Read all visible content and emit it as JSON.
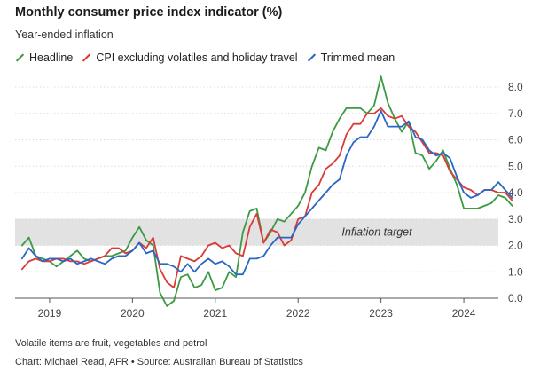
{
  "title": "Monthly consumer price index indicator (%)",
  "subtitle": "Year-ended inflation",
  "footnote": "Volatile items are fruit, vegetables and petrol",
  "source": "Chart: Michael Read, AFR • Source: Australian Bureau of Statistics",
  "colors": {
    "headline": "#3c9a43",
    "cpi_ex": "#d93b36",
    "trimmed": "#2a66c4",
    "band": "#e2e2e2",
    "grid": "#dcdcdc",
    "axis": "#555555"
  },
  "chart_data": {
    "type": "line",
    "x_range": [
      "2018-08",
      "2024-06"
    ],
    "ylim": [
      0,
      8.5
    ],
    "yticks": [
      "0.0",
      "1.0",
      "2.0",
      "3.0",
      "4.0",
      "5.0",
      "6.0",
      "7.0",
      "8.0"
    ],
    "xticks": [
      "2019",
      "2020",
      "2021",
      "2022",
      "2023",
      "2024"
    ],
    "grid": "horizontal",
    "legend": "top-left",
    "band": {
      "y_from": 2.0,
      "y_to": 3.0,
      "label": "Inflation target"
    },
    "series": [
      {
        "name": "Headline",
        "color_key": "headline",
        "values": [
          [
            "2018-09",
            2.0
          ],
          [
            "2018-10",
            2.3
          ],
          [
            "2018-11",
            1.6
          ],
          [
            "2018-12",
            1.5
          ],
          [
            "2019-01",
            1.4
          ],
          [
            "2019-02",
            1.2
          ],
          [
            "2019-03",
            1.4
          ],
          [
            "2019-04",
            1.6
          ],
          [
            "2019-05",
            1.8
          ],
          [
            "2019-06",
            1.5
          ],
          [
            "2019-07",
            1.4
          ],
          [
            "2019-08",
            1.5
          ],
          [
            "2019-09",
            1.6
          ],
          [
            "2019-10",
            1.6
          ],
          [
            "2019-11",
            1.7
          ],
          [
            "2019-12",
            1.8
          ],
          [
            "2020-01",
            2.3
          ],
          [
            "2020-02",
            2.7
          ],
          [
            "2020-03",
            2.2
          ],
          [
            "2020-04",
            2.0
          ],
          [
            "2020-05",
            0.2
          ],
          [
            "2020-06",
            -0.3
          ],
          [
            "2020-07",
            -0.1
          ],
          [
            "2020-08",
            0.8
          ],
          [
            "2020-09",
            0.9
          ],
          [
            "2020-10",
            0.4
          ],
          [
            "2020-11",
            0.5
          ],
          [
            "2020-12",
            1.0
          ],
          [
            "2021-01",
            0.3
          ],
          [
            "2021-02",
            0.4
          ],
          [
            "2021-03",
            1.0
          ],
          [
            "2021-04",
            0.8
          ],
          [
            "2021-05",
            2.5
          ],
          [
            "2021-06",
            3.3
          ],
          [
            "2021-07",
            3.4
          ],
          [
            "2021-08",
            2.1
          ],
          [
            "2021-09",
            2.5
          ],
          [
            "2021-10",
            3.0
          ],
          [
            "2021-11",
            2.9
          ],
          [
            "2021-12",
            3.2
          ],
          [
            "2022-01",
            3.5
          ],
          [
            "2022-02",
            4.0
          ],
          [
            "2022-03",
            5.0
          ],
          [
            "2022-04",
            5.7
          ],
          [
            "2022-05",
            5.6
          ],
          [
            "2022-06",
            6.3
          ],
          [
            "2022-07",
            6.8
          ],
          [
            "2022-08",
            7.2
          ],
          [
            "2022-09",
            7.2
          ],
          [
            "2022-10",
            7.2
          ],
          [
            "2022-11",
            7.0
          ],
          [
            "2022-12",
            7.3
          ],
          [
            "2023-01",
            8.4
          ],
          [
            "2023-02",
            7.4
          ],
          [
            "2023-03",
            6.8
          ],
          [
            "2023-04",
            6.3
          ],
          [
            "2023-05",
            6.7
          ],
          [
            "2023-06",
            5.5
          ],
          [
            "2023-07",
            5.4
          ],
          [
            "2023-08",
            4.9
          ],
          [
            "2023-09",
            5.2
          ],
          [
            "2023-10",
            5.6
          ],
          [
            "2023-11",
            4.9
          ],
          [
            "2023-12",
            4.3
          ],
          [
            "2024-01",
            3.4
          ],
          [
            "2024-02",
            3.4
          ],
          [
            "2024-03",
            3.4
          ],
          [
            "2024-04",
            3.5
          ],
          [
            "2024-05",
            3.6
          ],
          [
            "2024-06",
            3.9
          ],
          [
            "2024-07",
            3.8
          ],
          [
            "2024-08",
            3.5
          ]
        ]
      },
      {
        "name": "CPI excluding volatiles and holiday travel",
        "color_key": "cpi_ex",
        "values": [
          [
            "2018-09",
            1.1
          ],
          [
            "2018-10",
            1.4
          ],
          [
            "2018-11",
            1.5
          ],
          [
            "2018-12",
            1.4
          ],
          [
            "2019-01",
            1.4
          ],
          [
            "2019-02",
            1.5
          ],
          [
            "2019-03",
            1.5
          ],
          [
            "2019-04",
            1.4
          ],
          [
            "2019-05",
            1.4
          ],
          [
            "2019-06",
            1.3
          ],
          [
            "2019-07",
            1.4
          ],
          [
            "2019-08",
            1.5
          ],
          [
            "2019-09",
            1.6
          ],
          [
            "2019-10",
            1.9
          ],
          [
            "2019-11",
            1.9
          ],
          [
            "2019-12",
            1.7
          ],
          [
            "2020-01",
            1.8
          ],
          [
            "2020-02",
            2.1
          ],
          [
            "2020-03",
            1.9
          ],
          [
            "2020-04",
            2.3
          ],
          [
            "2020-05",
            1.1
          ],
          [
            "2020-06",
            0.6
          ],
          [
            "2020-07",
            0.4
          ],
          [
            "2020-08",
            1.6
          ],
          [
            "2020-09",
            1.5
          ],
          [
            "2020-10",
            1.4
          ],
          [
            "2020-11",
            1.6
          ],
          [
            "2020-12",
            2.0
          ],
          [
            "2021-01",
            2.1
          ],
          [
            "2021-02",
            1.9
          ],
          [
            "2021-03",
            2.0
          ],
          [
            "2021-04",
            1.7
          ],
          [
            "2021-05",
            1.6
          ],
          [
            "2021-06",
            2.7
          ],
          [
            "2021-07",
            3.2
          ],
          [
            "2021-08",
            2.1
          ],
          [
            "2021-09",
            2.6
          ],
          [
            "2021-10",
            2.5
          ],
          [
            "2021-11",
            2.0
          ],
          [
            "2021-12",
            2.2
          ],
          [
            "2022-01",
            3.0
          ],
          [
            "2022-02",
            3.1
          ],
          [
            "2022-03",
            4.0
          ],
          [
            "2022-04",
            4.3
          ],
          [
            "2022-05",
            4.9
          ],
          [
            "2022-06",
            5.1
          ],
          [
            "2022-07",
            5.4
          ],
          [
            "2022-08",
            6.2
          ],
          [
            "2022-09",
            6.6
          ],
          [
            "2022-10",
            6.6
          ],
          [
            "2022-11",
            7.0
          ],
          [
            "2022-12",
            7.0
          ],
          [
            "2023-01",
            7.2
          ],
          [
            "2023-02",
            6.9
          ],
          [
            "2023-03",
            6.8
          ],
          [
            "2023-04",
            6.9
          ],
          [
            "2023-05",
            6.5
          ],
          [
            "2023-06",
            6.3
          ],
          [
            "2023-07",
            5.9
          ],
          [
            "2023-08",
            5.5
          ],
          [
            "2023-09",
            5.5
          ],
          [
            "2023-10",
            5.4
          ],
          [
            "2023-11",
            4.8
          ],
          [
            "2023-12",
            4.5
          ],
          [
            "2024-01",
            4.2
          ],
          [
            "2024-02",
            4.1
          ],
          [
            "2024-03",
            3.9
          ],
          [
            "2024-04",
            4.1
          ],
          [
            "2024-05",
            4.1
          ],
          [
            "2024-06",
            4.0
          ],
          [
            "2024-07",
            4.0
          ],
          [
            "2024-08",
            3.7
          ]
        ]
      },
      {
        "name": "Trimmed mean",
        "color_key": "trimmed",
        "values": [
          [
            "2018-09",
            1.5
          ],
          [
            "2018-10",
            1.9
          ],
          [
            "2018-11",
            1.6
          ],
          [
            "2018-12",
            1.4
          ],
          [
            "2019-01",
            1.5
          ],
          [
            "2019-02",
            1.5
          ],
          [
            "2019-03",
            1.4
          ],
          [
            "2019-04",
            1.5
          ],
          [
            "2019-05",
            1.3
          ],
          [
            "2019-06",
            1.4
          ],
          [
            "2019-07",
            1.5
          ],
          [
            "2019-08",
            1.4
          ],
          [
            "2019-09",
            1.3
          ],
          [
            "2019-10",
            1.5
          ],
          [
            "2019-11",
            1.6
          ],
          [
            "2019-12",
            1.6
          ],
          [
            "2020-01",
            1.8
          ],
          [
            "2020-02",
            2.1
          ],
          [
            "2020-03",
            1.7
          ],
          [
            "2020-04",
            1.8
          ],
          [
            "2020-05",
            1.3
          ],
          [
            "2020-06",
            1.3
          ],
          [
            "2020-07",
            1.2
          ],
          [
            "2020-08",
            1.0
          ],
          [
            "2020-09",
            1.3
          ],
          [
            "2020-10",
            1.0
          ],
          [
            "2020-11",
            1.3
          ],
          [
            "2020-12",
            1.5
          ],
          [
            "2021-01",
            1.3
          ],
          [
            "2021-02",
            1.4
          ],
          [
            "2021-03",
            1.2
          ],
          [
            "2021-04",
            0.9
          ],
          [
            "2021-05",
            0.9
          ],
          [
            "2021-06",
            1.5
          ],
          [
            "2021-07",
            1.5
          ],
          [
            "2021-08",
            1.6
          ],
          [
            "2021-09",
            2.0
          ],
          [
            "2021-10",
            2.3
          ],
          [
            "2021-11",
            2.3
          ],
          [
            "2021-12",
            2.3
          ],
          [
            "2022-01",
            2.8
          ],
          [
            "2022-02",
            3.1
          ],
          [
            "2022-03",
            3.4
          ],
          [
            "2022-04",
            3.7
          ],
          [
            "2022-05",
            4.0
          ],
          [
            "2022-06",
            4.3
          ],
          [
            "2022-07",
            4.5
          ],
          [
            "2022-08",
            5.4
          ],
          [
            "2022-09",
            5.9
          ],
          [
            "2022-10",
            6.1
          ],
          [
            "2022-11",
            6.1
          ],
          [
            "2022-12",
            6.5
          ],
          [
            "2023-01",
            7.1
          ],
          [
            "2023-02",
            6.5
          ],
          [
            "2023-03",
            6.5
          ],
          [
            "2023-04",
            6.5
          ],
          [
            "2023-05",
            6.7
          ],
          [
            "2023-06",
            6.1
          ],
          [
            "2023-07",
            6.0
          ],
          [
            "2023-08",
            5.6
          ],
          [
            "2023-09",
            5.4
          ],
          [
            "2023-10",
            5.5
          ],
          [
            "2023-11",
            5.3
          ],
          [
            "2023-12",
            4.6
          ],
          [
            "2024-01",
            4.0
          ],
          [
            "2024-02",
            3.8
          ],
          [
            "2024-03",
            3.9
          ],
          [
            "2024-04",
            4.1
          ],
          [
            "2024-05",
            4.1
          ],
          [
            "2024-06",
            4.4
          ],
          [
            "2024-07",
            4.1
          ],
          [
            "2024-08",
            3.8
          ]
        ]
      }
    ]
  }
}
